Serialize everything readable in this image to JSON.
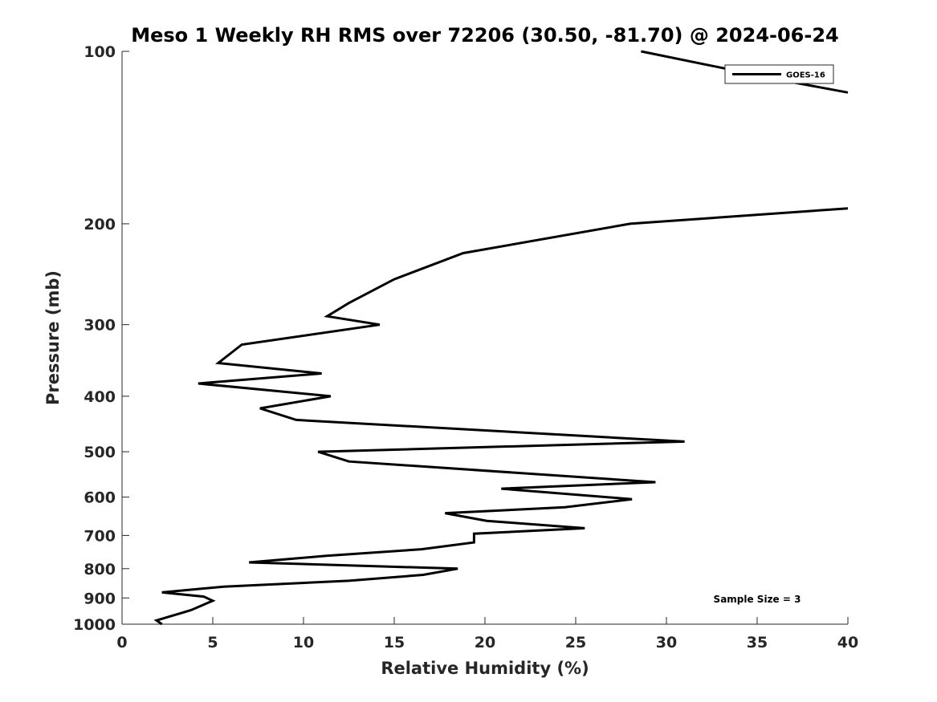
{
  "chart_data": {
    "type": "line",
    "title": "Meso 1 Weekly RH RMS over 72206 (30.50, -81.70) @ 2024-06-24",
    "xlabel": "Relative Humidity (%)",
    "ylabel": "Pressure (mb)",
    "xlim": [
      0,
      40
    ],
    "ylim": [
      100,
      1000
    ],
    "y_scale": "log",
    "y_reversed": true,
    "x_ticks": [
      0,
      5,
      10,
      15,
      20,
      25,
      30,
      35,
      40
    ],
    "y_ticks": [
      100,
      200,
      300,
      400,
      500,
      600,
      700,
      800,
      900,
      1000
    ],
    "grid": false,
    "legend_position": "top-right",
    "annotation": "Sample Size = 3",
    "series": [
      {
        "name": "GOES-16",
        "color": "#000000",
        "segments": [
          [
            {
              "x": 28.6,
              "y": 100
            },
            {
              "x": 36.8,
              "y": 113
            },
            {
              "x": 40.0,
              "y": 118
            }
          ],
          [
            {
              "x": 40.0,
              "y": 188
            },
            {
              "x": 28.0,
              "y": 200
            },
            {
              "x": 18.8,
              "y": 225
            },
            {
              "x": 15.0,
              "y": 250
            },
            {
              "x": 12.5,
              "y": 275
            },
            {
              "x": 11.3,
              "y": 290
            },
            {
              "x": 14.2,
              "y": 300
            },
            {
              "x": 6.6,
              "y": 325
            },
            {
              "x": 5.3,
              "y": 350
            },
            {
              "x": 11.0,
              "y": 365
            },
            {
              "x": 4.2,
              "y": 380
            },
            {
              "x": 11.5,
              "y": 400
            },
            {
              "x": 7.6,
              "y": 420
            },
            {
              "x": 9.6,
              "y": 440
            },
            {
              "x": 31.0,
              "y": 480
            },
            {
              "x": 10.8,
              "y": 500
            },
            {
              "x": 12.5,
              "y": 520
            },
            {
              "x": 29.4,
              "y": 565
            },
            {
              "x": 20.9,
              "y": 580
            },
            {
              "x": 28.1,
              "y": 605
            },
            {
              "x": 24.4,
              "y": 625
            },
            {
              "x": 17.8,
              "y": 640
            },
            {
              "x": 20.1,
              "y": 660
            },
            {
              "x": 25.5,
              "y": 680
            },
            {
              "x": 19.4,
              "y": 695
            },
            {
              "x": 19.4,
              "y": 720
            },
            {
              "x": 16.5,
              "y": 740
            },
            {
              "x": 11.2,
              "y": 760
            },
            {
              "x": 7.0,
              "y": 780
            },
            {
              "x": 18.5,
              "y": 800
            },
            {
              "x": 16.6,
              "y": 820
            },
            {
              "x": 12.5,
              "y": 840
            },
            {
              "x": 5.6,
              "y": 860
            },
            {
              "x": 2.2,
              "y": 880
            },
            {
              "x": 4.5,
              "y": 895
            },
            {
              "x": 5.0,
              "y": 910
            },
            {
              "x": 3.8,
              "y": 945
            },
            {
              "x": 1.9,
              "y": 985
            },
            {
              "x": 2.2,
              "y": 1000
            }
          ]
        ]
      }
    ]
  }
}
